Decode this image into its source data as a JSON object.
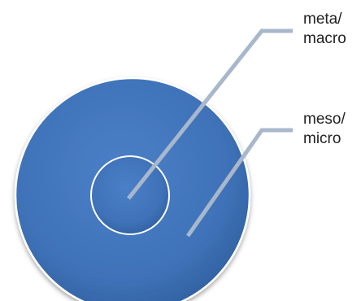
{
  "labels": {
    "outer_region": {
      "line1": "meta/",
      "line2": "macro"
    },
    "inner_region": {
      "line1": "meso/",
      "line2": "micro"
    }
  },
  "colors": {
    "disc_fill": "#3f72b8",
    "disc_edge": "#2f5f9e",
    "circle_stroke": "#ffffff",
    "leader_line": "#a9b7cc"
  }
}
